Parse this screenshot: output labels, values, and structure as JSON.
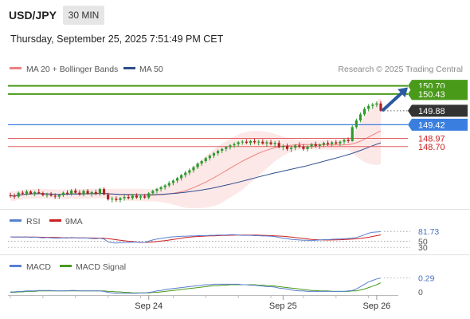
{
  "header": {
    "symbol": "USD/JPY",
    "timeframe": "30 MIN",
    "datetime": "Thursday, September 25, 2025 7:51:49 PM CET"
  },
  "legend": {
    "ma20_label": "MA 20 + Bollinger Bands",
    "ma50_label": "MA 50",
    "copyright": "Research © 2025 Trading Central"
  },
  "colors": {
    "ma20": "#f08080",
    "ma50": "#2e4e8e",
    "band_fill": "#fbd5d5",
    "bull_candle": "#2d9a2d",
    "bear_candle": "#b02222",
    "resistance": "#4a9a1a",
    "pivot": "#3a7fe0",
    "support": "#e06060",
    "current": "#333333",
    "arrow": "#2a5aa0",
    "rsi": "#5a7fd0",
    "rsi_ma": "#cc2020",
    "macd": "#5a7fd0",
    "macd_signal": "#4a9a1a",
    "axis_text": "#333333"
  },
  "chart_data": {
    "type": "candlestick",
    "instrument": "USD/JPY",
    "timeframe": "30 MIN",
    "price_levels": [
      {
        "value": 150.7,
        "label": "150.70",
        "kind": "resistance"
      },
      {
        "value": 150.43,
        "label": "150.43",
        "kind": "resistance"
      },
      {
        "value": 149.88,
        "label": "149.88",
        "kind": "current"
      },
      {
        "value": 149.42,
        "label": "149.42",
        "kind": "pivot"
      },
      {
        "value": 148.97,
        "label": "148.97",
        "kind": "support"
      },
      {
        "value": 148.7,
        "label": "148.70",
        "kind": "support"
      }
    ],
    "price_range": [
      146.75,
      150.9
    ],
    "x_ticks": [
      "Sep 24",
      "Sep 25",
      "Sep 26"
    ],
    "x_tick_index": [
      34,
      67,
      90
    ],
    "bar_count": 92,
    "ohlc": [
      [
        147.1,
        147.18,
        147.02,
        147.08
      ],
      [
        147.08,
        147.15,
        146.98,
        147.05
      ],
      [
        147.05,
        147.22,
        147.0,
        147.18
      ],
      [
        147.18,
        147.25,
        147.1,
        147.15
      ],
      [
        147.15,
        147.28,
        147.08,
        147.22
      ],
      [
        147.22,
        147.26,
        147.12,
        147.14
      ],
      [
        147.14,
        147.24,
        147.06,
        147.2
      ],
      [
        147.2,
        147.3,
        147.14,
        147.17
      ],
      [
        147.17,
        147.22,
        147.06,
        147.1
      ],
      [
        147.1,
        147.18,
        147.02,
        147.12
      ],
      [
        147.12,
        147.2,
        147.05,
        147.08
      ],
      [
        147.08,
        147.16,
        146.98,
        147.05
      ],
      [
        147.05,
        147.14,
        146.98,
        147.1
      ],
      [
        147.1,
        147.22,
        147.04,
        147.18
      ],
      [
        147.18,
        147.26,
        147.1,
        147.14
      ],
      [
        147.14,
        147.3,
        147.08,
        147.25
      ],
      [
        147.25,
        147.32,
        147.14,
        147.18
      ],
      [
        147.18,
        147.26,
        147.08,
        147.12
      ],
      [
        147.12,
        147.28,
        147.06,
        147.24
      ],
      [
        147.24,
        147.3,
        147.12,
        147.15
      ],
      [
        147.15,
        147.24,
        147.05,
        147.2
      ],
      [
        147.2,
        147.28,
        147.1,
        147.14
      ],
      [
        147.14,
        147.34,
        147.08,
        147.3
      ],
      [
        147.3,
        147.36,
        147.1,
        147.12
      ],
      [
        147.12,
        147.18,
        146.92,
        146.96
      ],
      [
        146.96,
        147.05,
        146.86,
        146.98
      ],
      [
        146.98,
        147.06,
        146.88,
        146.94
      ],
      [
        146.94,
        147.04,
        146.86,
        147.0
      ],
      [
        147.0,
        147.1,
        146.92,
        147.04
      ],
      [
        147.04,
        147.12,
        146.96,
        147.0
      ],
      [
        147.0,
        147.14,
        146.94,
        147.08
      ],
      [
        147.08,
        147.16,
        146.98,
        147.02
      ],
      [
        147.02,
        147.12,
        146.94,
        147.06
      ],
      [
        147.06,
        147.14,
        146.98,
        147.02
      ],
      [
        147.02,
        147.2,
        146.96,
        147.16
      ],
      [
        147.16,
        147.28,
        147.1,
        147.24
      ],
      [
        147.24,
        147.34,
        147.16,
        147.3
      ],
      [
        147.3,
        147.4,
        147.22,
        147.36
      ],
      [
        147.36,
        147.46,
        147.28,
        147.42
      ],
      [
        147.42,
        147.56,
        147.36,
        147.5
      ],
      [
        147.5,
        147.62,
        147.42,
        147.58
      ],
      [
        147.58,
        147.7,
        147.5,
        147.66
      ],
      [
        147.66,
        147.8,
        147.58,
        147.76
      ],
      [
        147.76,
        147.9,
        147.68,
        147.84
      ],
      [
        147.84,
        147.98,
        147.76,
        147.92
      ],
      [
        147.92,
        148.06,
        147.84,
        148.02
      ],
      [
        148.02,
        148.18,
        147.96,
        148.14
      ],
      [
        148.14,
        148.26,
        148.06,
        148.22
      ],
      [
        148.22,
        148.36,
        148.16,
        148.32
      ],
      [
        148.32,
        148.44,
        148.24,
        148.4
      ],
      [
        148.4,
        148.52,
        148.32,
        148.48
      ],
      [
        148.48,
        148.6,
        148.4,
        148.56
      ],
      [
        148.56,
        148.66,
        148.48,
        148.62
      ],
      [
        148.62,
        148.72,
        148.54,
        148.68
      ],
      [
        148.68,
        148.78,
        148.6,
        148.74
      ],
      [
        148.74,
        148.84,
        148.66,
        148.78
      ],
      [
        148.78,
        148.88,
        148.7,
        148.84
      ],
      [
        148.84,
        148.92,
        148.76,
        148.86
      ],
      [
        148.86,
        148.94,
        148.78,
        148.82
      ],
      [
        148.82,
        148.92,
        148.74,
        148.88
      ],
      [
        148.88,
        148.96,
        148.78,
        148.84
      ],
      [
        148.84,
        148.92,
        148.74,
        148.86
      ],
      [
        148.86,
        148.94,
        148.76,
        148.8
      ],
      [
        148.8,
        148.9,
        148.7,
        148.84
      ],
      [
        148.84,
        148.92,
        148.74,
        148.78
      ],
      [
        148.78,
        148.88,
        148.68,
        148.82
      ],
      [
        148.82,
        148.9,
        148.64,
        148.68
      ],
      [
        148.68,
        148.78,
        148.58,
        148.72
      ],
      [
        148.72,
        148.8,
        148.56,
        148.62
      ],
      [
        148.62,
        148.72,
        148.52,
        148.66
      ],
      [
        148.66,
        148.78,
        148.58,
        148.74
      ],
      [
        148.74,
        148.84,
        148.64,
        148.7
      ],
      [
        148.7,
        148.78,
        148.56,
        148.62
      ],
      [
        148.62,
        148.74,
        148.54,
        148.7
      ],
      [
        148.7,
        148.82,
        148.62,
        148.78
      ],
      [
        148.78,
        148.86,
        148.66,
        148.72
      ],
      [
        148.72,
        148.8,
        148.62,
        148.76
      ],
      [
        148.76,
        148.86,
        148.68,
        148.82
      ],
      [
        148.82,
        148.9,
        148.72,
        148.78
      ],
      [
        148.78,
        148.88,
        148.7,
        148.84
      ],
      [
        148.84,
        148.92,
        148.76,
        148.8
      ],
      [
        148.8,
        148.9,
        148.72,
        148.86
      ],
      [
        148.86,
        148.96,
        148.78,
        148.92
      ],
      [
        148.92,
        149.0,
        148.82,
        148.88
      ],
      [
        148.88,
        149.4,
        148.86,
        149.34
      ],
      [
        149.34,
        149.62,
        149.28,
        149.56
      ],
      [
        149.56,
        149.82,
        149.5,
        149.76
      ],
      [
        149.76,
        150.0,
        149.7,
        149.94
      ],
      [
        149.94,
        150.1,
        149.86,
        150.04
      ],
      [
        150.04,
        150.14,
        149.94,
        150.08
      ],
      [
        150.08,
        150.18,
        150.0,
        150.12
      ],
      [
        150.12,
        150.2,
        149.84,
        149.88
      ]
    ],
    "rsi": {
      "label": "RSI",
      "ma_label": "9MA",
      "range": [
        20,
        90
      ],
      "level_labels": [
        {
          "value": 81.73,
          "label": "81.73"
        },
        {
          "value": 50,
          "label": "50"
        },
        {
          "value": 30,
          "label": "30"
        }
      ],
      "values": [
        64,
        63,
        64,
        63,
        64,
        62,
        63,
        62,
        61,
        62,
        61,
        60,
        60,
        61,
        60,
        62,
        61,
        60,
        61,
        60,
        59,
        58,
        60,
        57,
        48,
        45,
        44,
        45,
        46,
        46,
        47,
        47,
        47,
        46,
        50,
        54,
        57,
        59,
        61,
        63,
        64,
        65,
        66,
        66,
        67,
        67,
        68,
        68,
        68,
        69,
        69,
        70,
        70,
        70,
        71,
        71,
        70,
        69,
        69,
        69,
        68,
        68,
        67,
        67,
        66,
        65,
        62,
        60,
        58,
        56,
        55,
        54,
        53,
        53,
        52,
        53,
        54,
        55,
        55,
        56,
        57,
        57,
        58,
        59,
        60,
        62,
        66,
        71,
        76,
        79,
        80,
        81
      ]
    },
    "macd": {
      "label": "MACD",
      "signal_label": "MACD Signal",
      "range": [
        -0.1,
        0.4
      ],
      "level_labels": [
        {
          "value": 0.29,
          "label": "0.29"
        },
        {
          "value": 0,
          "label": "0"
        }
      ],
      "macd": [
        0.0,
        0.0,
        0.01,
        0.01,
        0.02,
        0.02,
        0.02,
        0.03,
        0.03,
        0.03,
        0.03,
        0.02,
        0.02,
        0.02,
        0.02,
        0.03,
        0.03,
        0.02,
        0.02,
        0.02,
        0.02,
        0.02,
        0.02,
        0.01,
        -0.01,
        -0.02,
        -0.03,
        -0.03,
        -0.03,
        -0.03,
        -0.03,
        -0.03,
        -0.02,
        -0.02,
        -0.01,
        0.0,
        0.02,
        0.03,
        0.05,
        0.06,
        0.07,
        0.08,
        0.09,
        0.1,
        0.11,
        0.12,
        0.13,
        0.14,
        0.15,
        0.15,
        0.16,
        0.16,
        0.16,
        0.16,
        0.16,
        0.16,
        0.16,
        0.15,
        0.15,
        0.14,
        0.14,
        0.13,
        0.12,
        0.11,
        0.11,
        0.1,
        0.08,
        0.07,
        0.06,
        0.04,
        0.03,
        0.02,
        0.02,
        0.01,
        0.01,
        0.01,
        0.01,
        0.01,
        0.01,
        0.01,
        0.01,
        0.01,
        0.01,
        0.02,
        0.03,
        0.06,
        0.11,
        0.16,
        0.21,
        0.24,
        0.27,
        0.29
      ],
      "signal": [
        -0.01,
        -0.01,
        0.0,
        0.0,
        0.01,
        0.01,
        0.01,
        0.02,
        0.02,
        0.02,
        0.02,
        0.02,
        0.02,
        0.02,
        0.02,
        0.02,
        0.02,
        0.02,
        0.02,
        0.02,
        0.02,
        0.02,
        0.02,
        0.02,
        0.01,
        0.01,
        0.0,
        0.0,
        -0.01,
        -0.01,
        -0.02,
        -0.02,
        -0.02,
        -0.02,
        -0.02,
        -0.01,
        -0.01,
        0.0,
        0.01,
        0.02,
        0.03,
        0.04,
        0.05,
        0.06,
        0.07,
        0.08,
        0.09,
        0.1,
        0.11,
        0.12,
        0.13,
        0.13,
        0.14,
        0.14,
        0.15,
        0.15,
        0.15,
        0.15,
        0.15,
        0.15,
        0.15,
        0.14,
        0.14,
        0.13,
        0.13,
        0.12,
        0.11,
        0.1,
        0.09,
        0.08,
        0.07,
        0.06,
        0.05,
        0.04,
        0.03,
        0.03,
        0.02,
        0.02,
        0.02,
        0.01,
        0.01,
        0.01,
        0.01,
        0.01,
        0.02,
        0.02,
        0.04,
        0.06,
        0.09,
        0.12,
        0.15,
        0.19
      ]
    }
  }
}
